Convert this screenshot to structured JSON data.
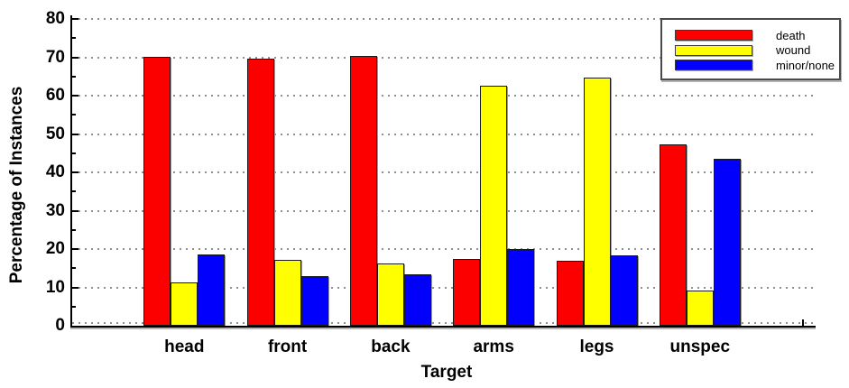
{
  "chart_data": {
    "type": "bar",
    "title": "",
    "xlabel": "Target",
    "ylabel": "Percentage of Instances",
    "categories": [
      "head",
      "front",
      "back",
      "arms",
      "legs",
      "unspec"
    ],
    "series": [
      {
        "name": "death",
        "color": "#fc0000",
        "values": [
          70.2,
          69.7,
          70.3,
          17.5,
          17.0,
          47.2
        ]
      },
      {
        "name": "wound",
        "color": "#ffff00",
        "values": [
          11.3,
          17.2,
          16.2,
          62.6,
          64.8,
          9.1
        ]
      },
      {
        "name": "minor/none",
        "color": "#0000fc",
        "values": [
          18.5,
          12.9,
          13.5,
          20.0,
          18.3,
          43.5
        ]
      }
    ],
    "ylim": [
      0,
      80
    ],
    "y_ticks": [
      0,
      10,
      20,
      30,
      40,
      50,
      60,
      70,
      80
    ],
    "y_minor_ticks": [
      5,
      15,
      25,
      35,
      45,
      55,
      65,
      75
    ],
    "grid": "horizontal-dotted",
    "grid_color": "#909090",
    "legend_position": "top-right"
  }
}
